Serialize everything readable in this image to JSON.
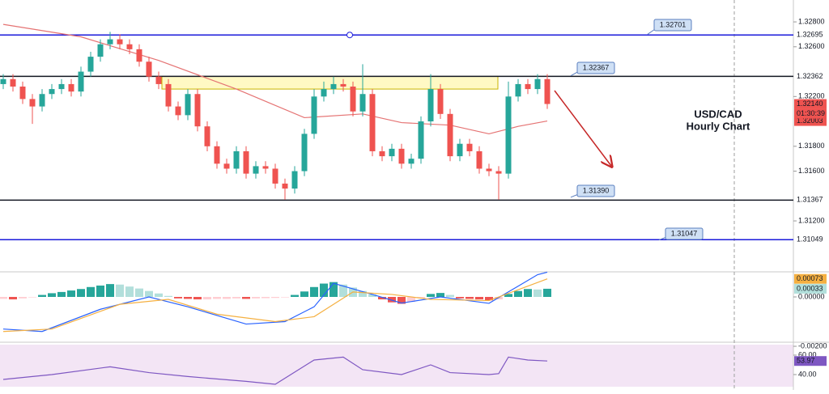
{
  "chart_data": {
    "type": "candlestick",
    "ylim": [
      1.30797,
      1.32976
    ],
    "yticks": [
      {
        "value": 1.328,
        "label": "1.32800"
      },
      {
        "value": 1.326,
        "label": "1.32600"
      },
      {
        "value": 1.322,
        "label": "1.32200"
      },
      {
        "value": 1.318,
        "label": "1.31800"
      },
      {
        "value": 1.316,
        "label": "1.31600"
      },
      {
        "value": 1.312,
        "label": "1.31200"
      }
    ],
    "up_color": "#26a69a",
    "down_color": "#ef5350",
    "open": [
      1.323,
      1.3234,
      1.3228,
      1.3218,
      1.3212,
      1.3222,
      1.3226,
      1.323,
      1.3224,
      1.324,
      1.3252,
      1.3262,
      1.3266,
      1.3262,
      1.3258,
      1.3248,
      1.3236,
      1.323,
      1.3212,
      1.3205,
      1.3222,
      1.3196,
      1.318,
      1.3166,
      1.3162,
      1.3176,
      1.3158,
      1.3164,
      1.3162,
      1.315,
      1.3146,
      1.316,
      1.319,
      1.322,
      1.3226,
      1.323,
      1.3228,
      1.3208,
      1.3222,
      1.3176,
      1.3172,
      1.3178,
      1.3166,
      1.317,
      1.32,
      1.3226,
      1.3206,
      1.3172,
      1.3182,
      1.3176,
      1.3162,
      1.316,
      1.3158,
      1.322,
      1.323,
      1.3226,
      1.3234
    ],
    "high": [
      1.3238,
      1.3238,
      1.3232,
      1.3222,
      1.3226,
      1.323,
      1.3234,
      1.3234,
      1.3244,
      1.3256,
      1.3266,
      1.3272,
      1.327,
      1.3266,
      1.3262,
      1.3252,
      1.324,
      1.3234,
      1.3216,
      1.3226,
      1.3226,
      1.32,
      1.3184,
      1.317,
      1.318,
      1.318,
      1.3168,
      1.3168,
      1.3166,
      1.3154,
      1.3164,
      1.3194,
      1.3226,
      1.3232,
      1.3236,
      1.3234,
      1.3232,
      1.3246,
      1.3226,
      1.318,
      1.3182,
      1.3182,
      1.3174,
      1.3204,
      1.3238,
      1.323,
      1.321,
      1.3186,
      1.3186,
      1.318,
      1.3166,
      1.3164,
      1.3232,
      1.3234,
      1.3234,
      1.3238,
      1.3238
    ],
    "low": [
      1.3226,
      1.3224,
      1.3214,
      1.3198,
      1.3208,
      1.3218,
      1.3222,
      1.322,
      1.322,
      1.3236,
      1.3248,
      1.3258,
      1.3258,
      1.3254,
      1.3244,
      1.3232,
      1.3226,
      1.3208,
      1.3201,
      1.3201,
      1.3192,
      1.3176,
      1.3162,
      1.3158,
      1.3158,
      1.3154,
      1.3154,
      1.3158,
      1.3146,
      1.3137,
      1.3142,
      1.3156,
      1.3186,
      1.3216,
      1.3222,
      1.3224,
      1.3204,
      1.3204,
      1.3172,
      1.3168,
      1.3168,
      1.3162,
      1.3162,
      1.3166,
      1.3196,
      1.3202,
      1.3168,
      1.3168,
      1.3172,
      1.3158,
      1.3156,
      1.3137,
      1.3154,
      1.3216,
      1.3222,
      1.3222,
      1.321
    ],
    "close": [
      1.3234,
      1.3228,
      1.3218,
      1.3212,
      1.3222,
      1.3226,
      1.323,
      1.3224,
      1.324,
      1.3252,
      1.3262,
      1.3266,
      1.3262,
      1.3258,
      1.3248,
      1.3236,
      1.323,
      1.3212,
      1.3205,
      1.3222,
      1.3196,
      1.318,
      1.3166,
      1.3162,
      1.3176,
      1.3158,
      1.3164,
      1.3162,
      1.315,
      1.3146,
      1.316,
      1.319,
      1.322,
      1.3226,
      1.323,
      1.3228,
      1.3208,
      1.3222,
      1.3176,
      1.3172,
      1.3178,
      1.3166,
      1.317,
      1.32,
      1.3226,
      1.3206,
      1.3172,
      1.3182,
      1.3176,
      1.3162,
      1.316,
      1.3158,
      1.322,
      1.323,
      1.3226,
      1.3234,
      1.3214
    ],
    "ma": {
      "color": "#e57373",
      "x": [
        0,
        8,
        16,
        24,
        31,
        37,
        41,
        46,
        50,
        53,
        56
      ],
      "values": [
        1.3278,
        1.3268,
        1.3249,
        1.3226,
        1.3203,
        1.3206,
        1.3199,
        1.3197,
        1.319,
        1.3196,
        1.32003
      ]
    },
    "zone": [
      1.3226,
      1.32362
    ],
    "levels": [
      {
        "value": 1.32695,
        "label": "1.32695",
        "color": "#1a1adb"
      },
      {
        "value": 1.32362,
        "label": "1.32362",
        "color": "#131722"
      },
      {
        "value": 1.31367,
        "label": "1.31367",
        "color": "#131722"
      },
      {
        "value": 1.31049,
        "label": "1.31049",
        "color": "#1a1adb"
      }
    ],
    "callouts": [
      {
        "value": 1.32701,
        "label": "1.32701"
      },
      {
        "value": 1.32367,
        "label": "1.32367"
      },
      {
        "value": 1.3139,
        "label": "1.31390"
      },
      {
        "value": 1.31047,
        "label": "1.31047"
      }
    ],
    "price_tags": [
      {
        "value": 1.3214,
        "label": "1.32140",
        "color": "#ef5350"
      },
      {
        "value": 1.32003,
        "label": "1.32003",
        "color": "#ef5350"
      }
    ],
    "countdown": "01:30:39",
    "annotation": [
      "USD/CAD",
      "Hourly Chart"
    ],
    "macd": {
      "ylim": [
        -0.00213,
        0.00095
      ],
      "yticks": [
        {
          "value": 0,
          "label": "0.00000"
        },
        {
          "value": -0.002,
          "label": "-0.00200"
        }
      ],
      "hist": [
        -8e-05,
        -0.0001,
        -6e-05,
        -2e-05,
        8e-05,
        0.00015,
        0.0002,
        0.00026,
        0.00032,
        0.0004,
        0.00046,
        0.00052,
        0.0005,
        0.00042,
        0.00034,
        0.00024,
        0.00014,
        4e-05,
        -6e-05,
        -8e-05,
        -0.0001,
        -0.0001,
        -8e-05,
        -8e-05,
        -6e-05,
        -8e-05,
        -6e-05,
        -5e-05,
        -4e-05,
        -2e-05,
        8e-05,
        0.00022,
        0.0004,
        0.00054,
        0.0006,
        0.0005,
        0.00038,
        0.00024,
        0.0001,
        -0.0001,
        -0.00022,
        -0.00028,
        -0.0002,
        -4e-05,
        0.00012,
        0.00016,
        8e-05,
        -6e-05,
        -8e-05,
        -0.0001,
        -0.00014,
        -0.0001,
        0.00012,
        0.00024,
        0.00032,
        0.0003,
        0.00033
      ],
      "hist_colors": [
        "#26a69a",
        "#b2dfdb",
        "#ef5350",
        "#ffcdd2"
      ],
      "macd_line": {
        "color": "#2962ff",
        "x": [
          0,
          4,
          10,
          15,
          19,
          25,
          29,
          32,
          34,
          38,
          41,
          45,
          50,
          55,
          56
        ],
        "values": [
          -0.0013,
          -0.0014,
          -0.0005,
          0,
          -0.0004,
          -0.0011,
          -0.001,
          -0.0004,
          0.00055,
          0.0001,
          -0.00025,
          0,
          -0.00026,
          0.0009,
          0.001
        ]
      },
      "signal_line": {
        "color": "#f5b041",
        "x": [
          0,
          5,
          12,
          17,
          22,
          28,
          32,
          36,
          40,
          44,
          50,
          56
        ],
        "values": [
          -0.0014,
          -0.0013,
          -0.0003,
          -0.0001,
          -0.0007,
          -0.001,
          -0.0008,
          0.0002,
          0.0001,
          -0.0001,
          -0.00015,
          0.00073
        ]
      },
      "tags": [
        {
          "value": 0.00073,
          "label": "0.00073",
          "color": "#f5b041"
        },
        {
          "value": 0.00033,
          "label": "0.00033",
          "color": "#b2dfdb"
        }
      ]
    },
    "rsi": {
      "ylim": [
        27.5,
        70.8
      ],
      "yticks": [
        {
          "value": 60,
          "label": "60.00"
        },
        {
          "value": 40,
          "label": "40.00"
        }
      ],
      "color": "#7e57c2",
      "x": [
        0,
        5,
        11,
        15,
        19,
        25,
        28,
        32,
        35,
        37,
        41,
        44,
        46,
        50,
        51,
        52,
        54,
        56
      ],
      "values": [
        35,
        40,
        48,
        42,
        38,
        33,
        30,
        55,
        58,
        45,
        40,
        50,
        42,
        40,
        41,
        58,
        55,
        53.97
      ],
      "tag": {
        "value": 53.97,
        "label": "53.97"
      }
    }
  }
}
